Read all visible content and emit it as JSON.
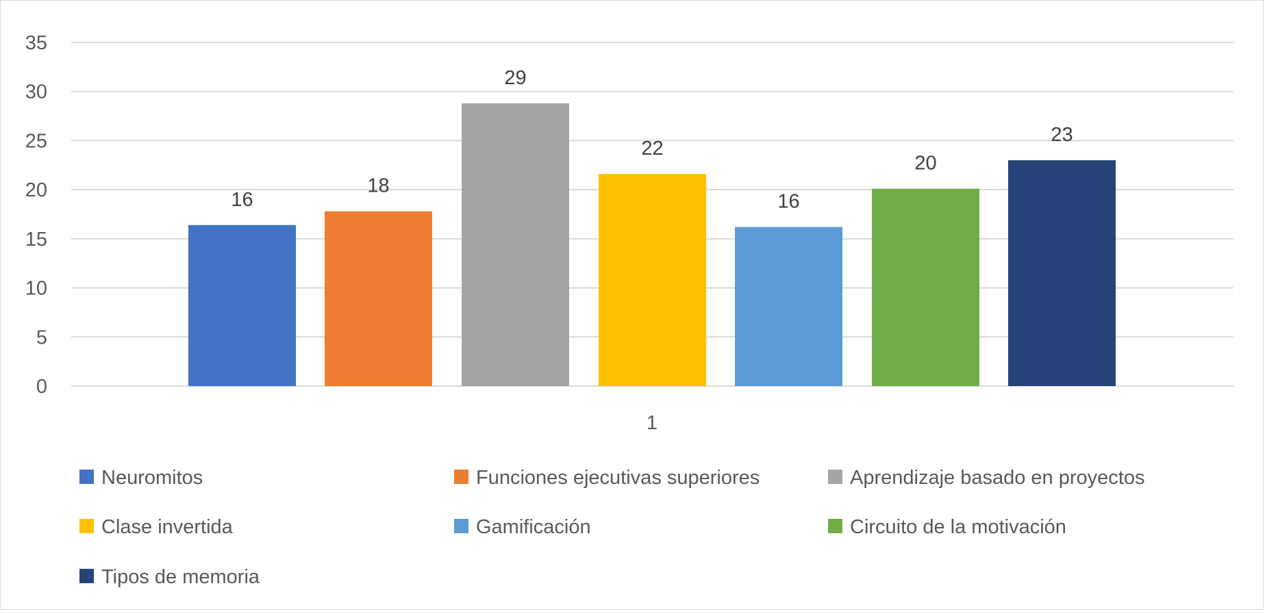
{
  "chart_data": {
    "type": "bar",
    "categories": [
      "1"
    ],
    "series": [
      {
        "name": "Neuromitos",
        "values": [
          16
        ],
        "color": "#4472C4"
      },
      {
        "name": "Funciones ejecutivas superiores",
        "values": [
          18
        ],
        "color": "#ED7D31"
      },
      {
        "name": "Aprendizaje basado en proyectos",
        "values": [
          29
        ],
        "color": "#A5A5A5"
      },
      {
        "name": "Clase invertida",
        "values": [
          22
        ],
        "color": "#FFC000"
      },
      {
        "name": "Gamificación",
        "values": [
          16
        ],
        "color": "#5B9BD5"
      },
      {
        "name": "Circuito de la motivación",
        "values": [
          20
        ],
        "color": "#70AD47"
      },
      {
        "name": "Tipos de memoria",
        "values": [
          23
        ],
        "color": "#264478"
      }
    ],
    "bar_heights": [
      16.4,
      17.8,
      28.8,
      21.6,
      16.2,
      20.1,
      23.0
    ],
    "data_labels": [
      "16",
      "18",
      "29",
      "22",
      "16",
      "20",
      "23"
    ],
    "yticks": [
      "0",
      "5",
      "10",
      "15",
      "20",
      "25",
      "30",
      "35"
    ],
    "ylim": [
      0,
      35
    ],
    "grid": true,
    "legend_position": "bottom",
    "title": "",
    "xlabel": "",
    "ylabel": ""
  }
}
